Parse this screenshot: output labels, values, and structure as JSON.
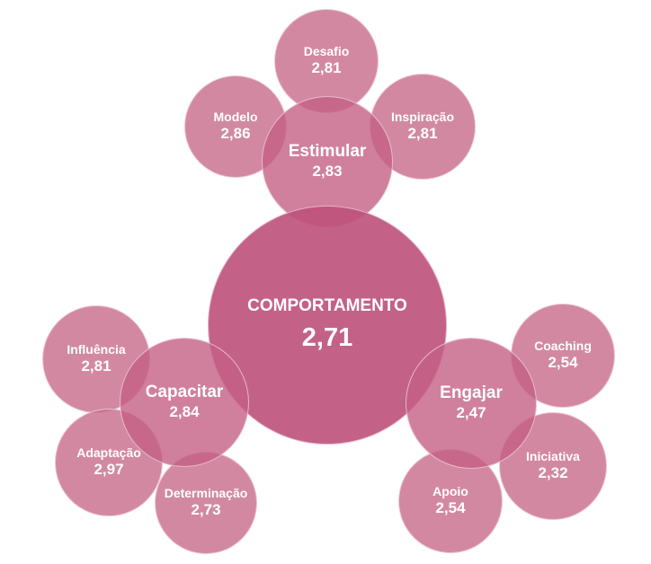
{
  "center": {
    "label": "COMPORTAMENTO",
    "value": "2,71"
  },
  "estimular": {
    "label": "Estimular",
    "value": "2,83",
    "children": [
      {
        "label": "Desafio",
        "value": "2,81"
      },
      {
        "label": "Modelo",
        "value": "2,86"
      },
      {
        "label": "Inspiração",
        "value": "2,81"
      }
    ]
  },
  "capacitar": {
    "label": "Capacitar",
    "value": "2,84",
    "children": [
      {
        "label": "Influência",
        "value": "2,81"
      },
      {
        "label": "Adaptação",
        "value": "2,97"
      },
      {
        "label": "Determinação",
        "value": "2,73"
      }
    ]
  },
  "engajar": {
    "label": "Engajar",
    "value": "2,47",
    "children": [
      {
        "label": "Coaching",
        "value": "2,54"
      },
      {
        "label": "Iniciativa",
        "value": "2,32"
      },
      {
        "label": "Apoio",
        "value": "2,54"
      }
    ]
  },
  "colors": {
    "leaf": "#C96E8E",
    "group": "#C46084",
    "center": "#BE507A",
    "text": "#FFFFFF"
  }
}
